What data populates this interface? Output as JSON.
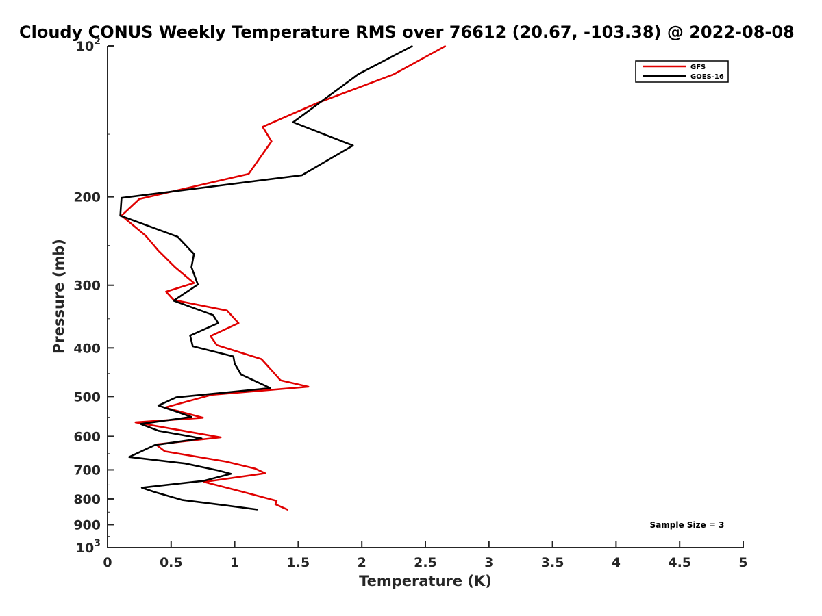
{
  "chart_data": {
    "type": "line",
    "title": "Cloudy CONUS Weekly Temperature RMS over 76612 (20.67, -103.38) @ 2022-08-08",
    "xlabel": "Temperature (K)",
    "ylabel": "Pressure (mb)",
    "xlim": [
      0,
      5
    ],
    "ylim": [
      100,
      1000
    ],
    "y_scale": "log",
    "y_reversed": true,
    "x_ticks": [
      0,
      0.5,
      1,
      1.5,
      2,
      2.5,
      3,
      3.5,
      4,
      4.5,
      5
    ],
    "x_tick_labels": [
      "0",
      "0.5",
      "1",
      "1.5",
      "2",
      "2.5",
      "3",
      "3.5",
      "4",
      "4.5",
      "5"
    ],
    "y_ticks": [
      100,
      200,
      300,
      400,
      500,
      600,
      700,
      800,
      900,
      1000
    ],
    "y_tick_labels": [
      {
        "base": "10",
        "exp": "2"
      },
      {
        "base": "200",
        "exp": ""
      },
      {
        "base": "300",
        "exp": ""
      },
      {
        "base": "400",
        "exp": ""
      },
      {
        "base": "500",
        "exp": ""
      },
      {
        "base": "600",
        "exp": ""
      },
      {
        "base": "700",
        "exp": ""
      },
      {
        "base": "800",
        "exp": ""
      },
      {
        "base": "900",
        "exp": ""
      },
      {
        "base": "10",
        "exp": "3"
      }
    ],
    "legend_position": "top-right",
    "annotation": "Sample Size = 3",
    "series": [
      {
        "name": "GFS",
        "color": "#e00000",
        "x": [
          2.66,
          2.25,
          1.65,
          1.22,
          1.29,
          1.11,
          0.25,
          0.11,
          0.3,
          0.4,
          0.53,
          0.68,
          0.46,
          0.52,
          0.94,
          1.03,
          0.81,
          0.86,
          1.21,
          1.3,
          1.36,
          1.58,
          0.82,
          0.45,
          0.75,
          0.22,
          0.89,
          0.38,
          0.45,
          0.93,
          1.16,
          1.24,
          0.76,
          1.05,
          1.33,
          1.32,
          1.42
        ],
        "y": [
          100,
          114,
          130,
          145,
          155,
          180,
          202,
          218,
          239,
          256,
          276,
          297,
          309,
          321,
          337,
          357,
          379,
          395,
          421,
          446,
          464,
          478,
          496,
          526,
          551,
          563,
          603,
          623,
          643,
          674,
          696,
          711,
          740,
          773,
          807,
          820,
          841
        ]
      },
      {
        "name": "GOES-16",
        "color": "#000000",
        "x": [
          2.4,
          1.97,
          1.46,
          1.93,
          1.53,
          0.11,
          0.1,
          0.55,
          0.68,
          0.66,
          0.71,
          0.52,
          0.83,
          0.87,
          0.65,
          0.67,
          0.99,
          1.0,
          1.05,
          1.28,
          0.54,
          0.4,
          0.66,
          0.26,
          0.4,
          0.74,
          0.37,
          0.17,
          0.61,
          0.87,
          0.97,
          0.76,
          0.27,
          0.37,
          0.59,
          0.93,
          1.18
        ],
        "y": [
          100,
          114,
          142,
          158,
          181,
          201,
          218,
          240,
          260,
          276,
          299,
          322,
          344,
          357,
          378,
          397,
          416,
          430,
          452,
          481,
          502,
          521,
          549,
          567,
          585,
          606,
          625,
          660,
          680,
          702,
          713,
          736,
          760,
          775,
          804,
          824,
          840
        ]
      }
    ]
  }
}
